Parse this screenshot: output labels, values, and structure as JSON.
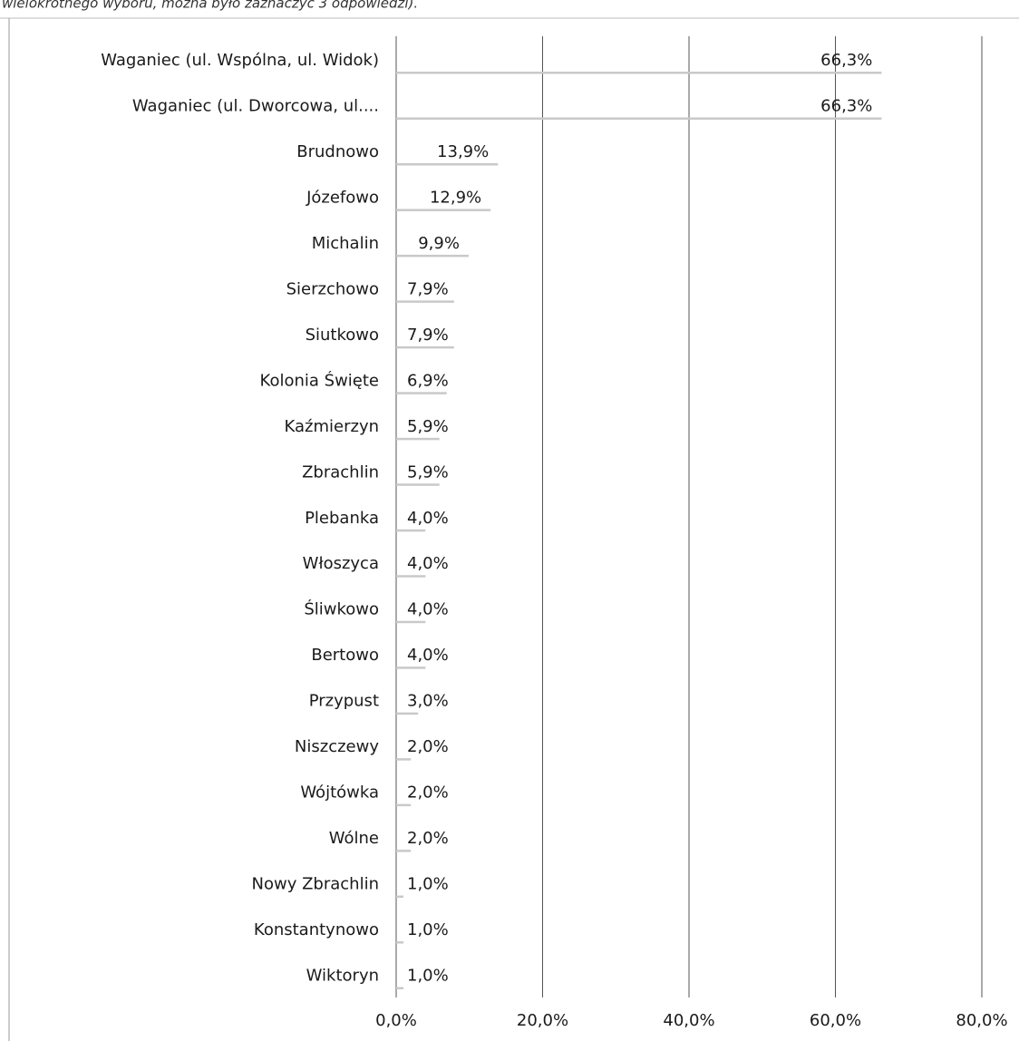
{
  "chart_data": {
    "type": "bar",
    "orientation": "horizontal",
    "subtitle": "wielokrotnego wyboru, można było zaznaczyć 3 odpowiedzi).",
    "categories": [
      "Waganiec  (ul. Wspólna, ul. Widok)",
      "Waganiec (ul. Dworcowa, ul....",
      "Brudnowo",
      "Józefowo",
      "Michalin",
      "Sierzchowo",
      "Siutkowo",
      "Kolonia Święte",
      "Kaźmierzyn",
      "Zbrachlin",
      "Plebanka",
      "Włoszyca",
      "Śliwkowo",
      "Bertowo",
      "Przypust",
      "Niszczewy",
      "Wójtówka",
      "Wólne",
      "Nowy Zbrachlin",
      "Konstantynowo",
      "Wiktoryn"
    ],
    "values": [
      66.3,
      66.3,
      13.9,
      12.9,
      9.9,
      7.9,
      7.9,
      6.9,
      5.9,
      5.9,
      4.0,
      4.0,
      4.0,
      4.0,
      3.0,
      2.0,
      2.0,
      2.0,
      1.0,
      1.0,
      1.0
    ],
    "value_labels": [
      "66,3%",
      "66,3%",
      "13,9%",
      "12,9%",
      "9,9%",
      "7,9%",
      "7,9%",
      "6,9%",
      "5,9%",
      "5,9%",
      "4,0%",
      "4,0%",
      "4,0%",
      "4,0%",
      "3,0%",
      "2,0%",
      "2,0%",
      "2,0%",
      "1,0%",
      "1,0%",
      "1,0%"
    ],
    "color": "#c9c9c9",
    "xlim": [
      0,
      80
    ],
    "xticks": [
      {
        "value": 0,
        "label": "0,0%"
      },
      {
        "value": 20,
        "label": "20,0%"
      },
      {
        "value": 40,
        "label": "40,0%"
      },
      {
        "value": 60,
        "label": "60,0%"
      },
      {
        "value": 80,
        "label": "80,0%"
      }
    ],
    "grid": true
  }
}
